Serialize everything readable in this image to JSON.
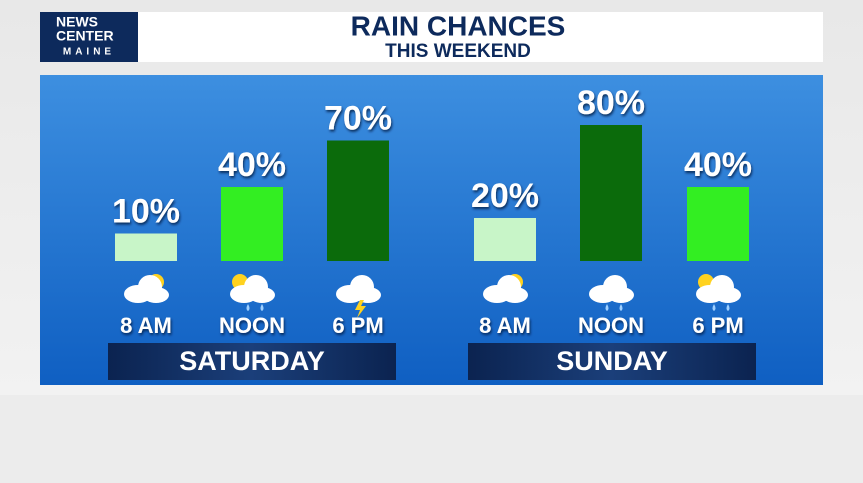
{
  "header": {
    "logo": [
      "NEWS",
      "CENTER",
      "MAINE"
    ],
    "title": "RAIN CHANCES",
    "subtitle": "THIS WEEKEND"
  },
  "chart_data": [
    {
      "type": "bar",
      "title": "SATURDAY",
      "categories": [
        "8 AM",
        "NOON",
        "6 PM"
      ],
      "values": [
        10,
        40,
        70
      ],
      "value_labels": [
        "10%",
        "40%",
        "70%"
      ],
      "colors": [
        "#c8f5c8",
        "#33ee22",
        "#0b6b0b"
      ]
    },
    {
      "type": "bar",
      "title": "SUNDAY",
      "categories": [
        "8 AM",
        "NOON",
        "6 PM"
      ],
      "values": [
        20,
        80,
        40
      ],
      "value_labels": [
        "20%",
        "80%",
        "40%"
      ],
      "colors": [
        "#c8f5c8",
        "#0b6b0b",
        "#33ee22"
      ]
    }
  ]
}
